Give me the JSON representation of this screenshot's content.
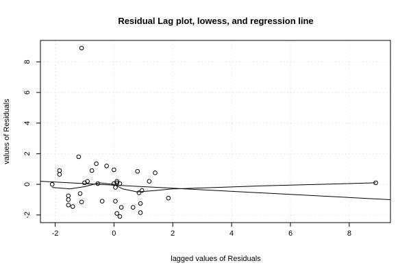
{
  "chart_data": {
    "type": "scatter",
    "title": "Residual Lag plot, lowess, and regression line",
    "xlabel": "lagged values of Residuals",
    "ylabel": "values of Residuals",
    "xlim": [
      -2.5,
      9.4
    ],
    "ylim": [
      -2.5,
      9.4
    ],
    "xticks": [
      -2,
      0,
      2,
      4,
      6,
      8
    ],
    "yticks": [
      -2,
      0,
      2,
      4,
      6,
      8
    ],
    "grid": true,
    "series": [
      {
        "points": [
          [
            -2.1,
            0.0
          ],
          [
            -1.85,
            0.9
          ],
          [
            -1.85,
            0.65
          ],
          [
            -1.55,
            -0.75
          ],
          [
            -1.55,
            -1.0
          ],
          [
            -1.55,
            -1.35
          ],
          [
            -1.4,
            -1.45
          ],
          [
            -1.2,
            1.8
          ],
          [
            -1.15,
            -0.6
          ],
          [
            -1.1,
            -1.15
          ],
          [
            -1.1,
            8.9
          ],
          [
            -1.0,
            0.1
          ],
          [
            -0.9,
            0.2
          ],
          [
            -0.75,
            0.9
          ],
          [
            -0.6,
            1.35
          ],
          [
            -0.55,
            0.05
          ],
          [
            -0.4,
            -1.1
          ],
          [
            -0.25,
            1.2
          ],
          [
            0.0,
            0.95
          ],
          [
            0.0,
            0.05
          ],
          [
            0.05,
            -0.2
          ],
          [
            0.05,
            -1.1
          ],
          [
            0.1,
            0.2
          ],
          [
            0.1,
            0.1
          ],
          [
            0.1,
            -1.9
          ],
          [
            0.2,
            0.05
          ],
          [
            0.2,
            -2.1
          ],
          [
            0.25,
            -1.5
          ],
          [
            0.65,
            -1.5
          ],
          [
            0.8,
            0.85
          ],
          [
            0.85,
            -0.55
          ],
          [
            0.9,
            -1.25
          ],
          [
            0.9,
            -1.85
          ],
          [
            0.95,
            -0.4
          ],
          [
            1.2,
            0.2
          ],
          [
            1.4,
            0.75
          ],
          [
            1.85,
            -0.9
          ],
          [
            8.9,
            0.1
          ]
        ]
      }
    ],
    "lowess": [
      [
        -2.1,
        -0.2
      ],
      [
        -1.5,
        -0.3
      ],
      [
        -1.0,
        -0.15
      ],
      [
        -0.5,
        0.1
      ],
      [
        0.0,
        0.0
      ],
      [
        0.3,
        -0.3
      ],
      [
        0.8,
        -0.5
      ],
      [
        1.4,
        -0.4
      ],
      [
        2.0,
        -0.3
      ],
      [
        3.5,
        -0.2
      ],
      [
        5.0,
        -0.1
      ],
      [
        7.0,
        0.0
      ],
      [
        8.9,
        0.1
      ]
    ],
    "regression": {
      "x": [
        -2.5,
        9.4
      ],
      "y": [
        0.2,
        -1.0
      ]
    }
  }
}
